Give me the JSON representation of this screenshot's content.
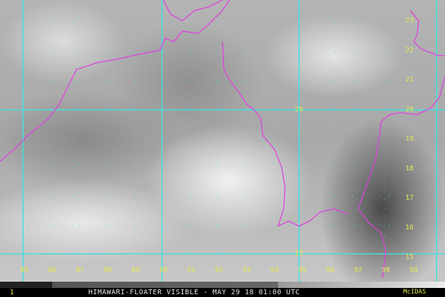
{
  "footer": {
    "frame": "1",
    "title": "HIMAWARI-FLOATER VISIBLE - MAY 29 18 01:00 UTC",
    "brand": "McIDAS"
  },
  "longitude_labels": [
    "85",
    "86",
    "87",
    "88",
    "89",
    "90",
    "91",
    "92",
    "93",
    "94",
    "95",
    "96",
    "97",
    "98",
    "99"
  ],
  "latitude_labels": [
    "23",
    "22",
    "21",
    "20",
    "19",
    "18",
    "17",
    "16",
    "15"
  ],
  "grid_labels": {
    "lat20": "20",
    "lat15": "15"
  },
  "colors": {
    "grid": "#40e0e0",
    "borders": "#e040e0",
    "labels": "#e6e650"
  }
}
